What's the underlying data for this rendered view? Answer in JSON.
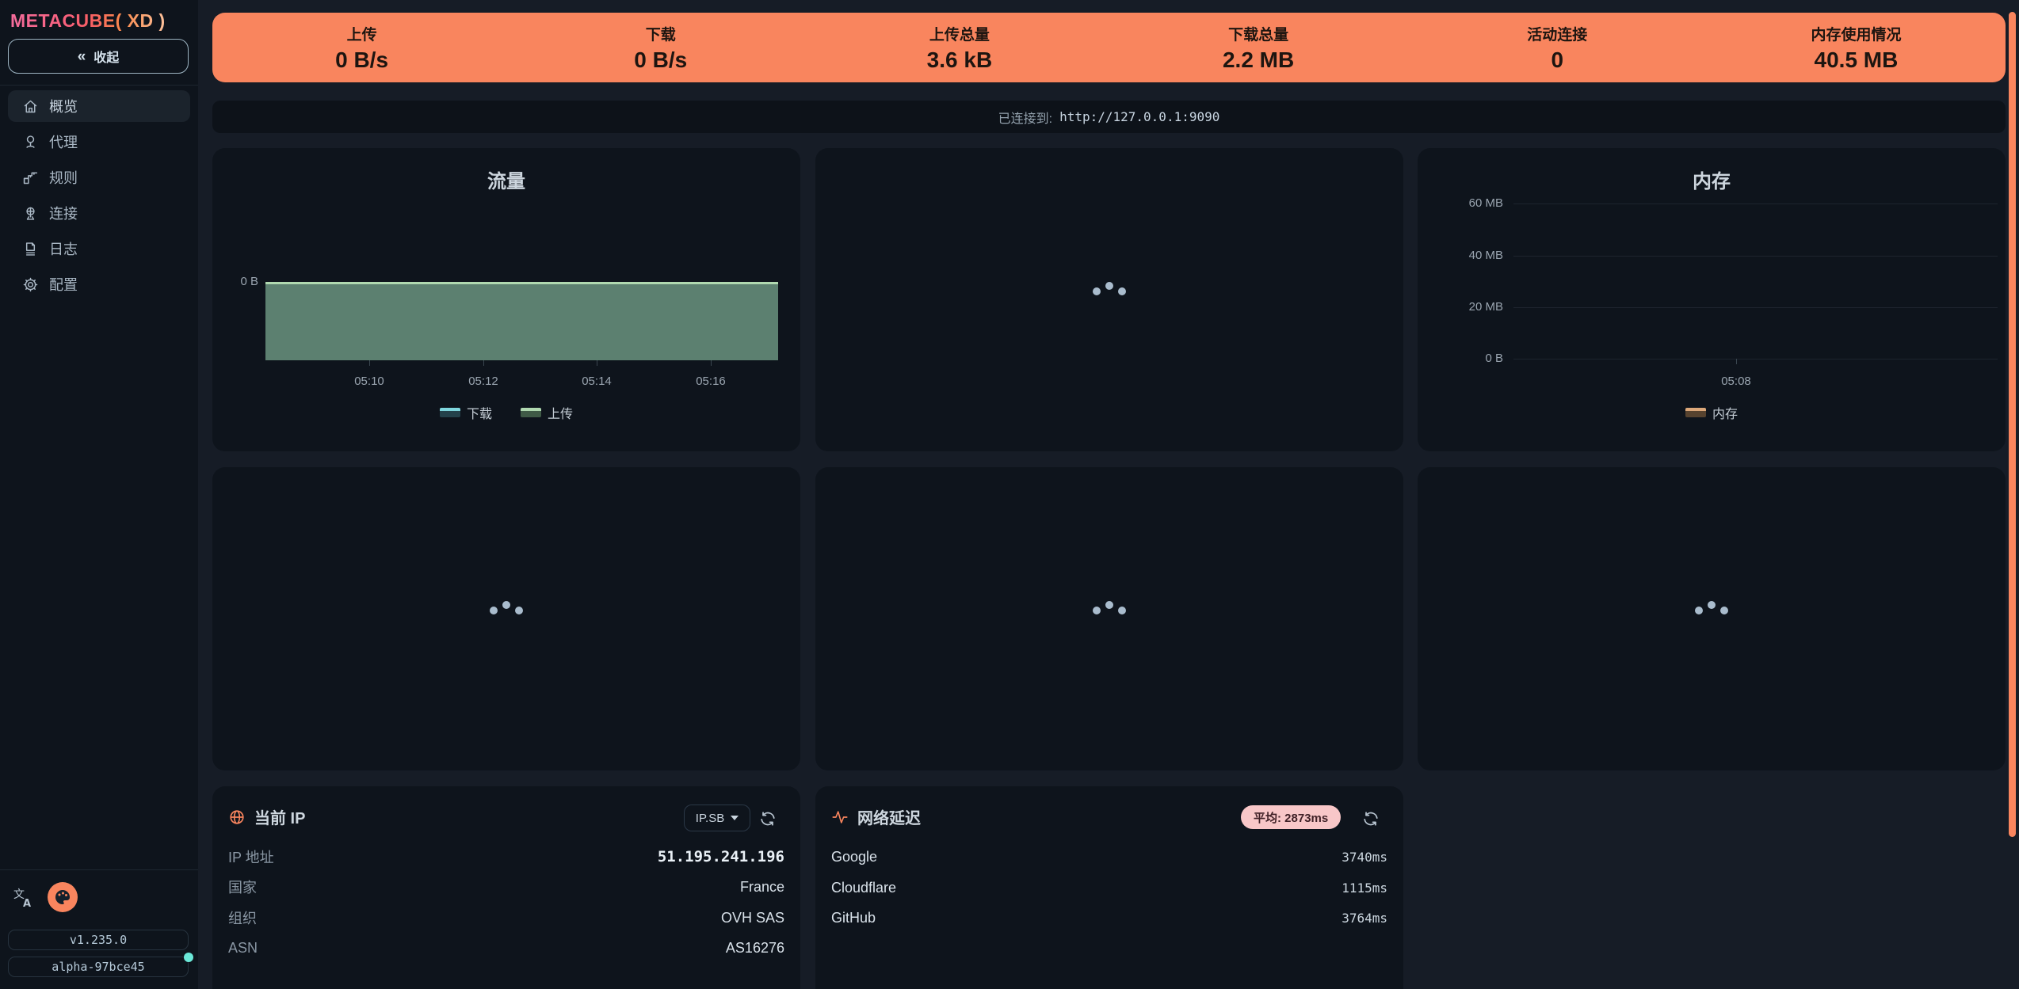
{
  "colors": {
    "accent_orange": "#f9855e",
    "pink": "#f8c7c8",
    "cyan_status_dot": "#6be8d8",
    "download_series": "#7fd7de",
    "upload_series": "#b0d9b0",
    "memory_series": "#dca87a"
  },
  "logo": {
    "part1": "METACUBE(",
    "part2": " XD ",
    "part3": ")"
  },
  "sidebar": {
    "collapse": {
      "icon": "«",
      "label": "收起"
    },
    "items": [
      {
        "label": "概览",
        "icon": "home-icon",
        "active": true
      },
      {
        "label": "代理",
        "icon": "proxy-icon",
        "active": false
      },
      {
        "label": "规则",
        "icon": "rules-icon",
        "active": false
      },
      {
        "label": "连接",
        "icon": "connections-icon",
        "active": false
      },
      {
        "label": "日志",
        "icon": "logs-icon",
        "active": false
      },
      {
        "label": "配置",
        "icon": "config-icon",
        "active": false
      }
    ],
    "version": "v1.235.0",
    "build": "alpha-97bce45"
  },
  "banner": {
    "stats": [
      {
        "label": "上传",
        "value": "0 B/s"
      },
      {
        "label": "下载",
        "value": "0 B/s"
      },
      {
        "label": "上传总量",
        "value": "3.6 kB"
      },
      {
        "label": "下载总量",
        "value": "2.2 MB"
      },
      {
        "label": "活动连接",
        "value": "0"
      },
      {
        "label": "内存使用情况",
        "value": "40.5 MB"
      }
    ]
  },
  "connection": {
    "prefix": "已连接到:",
    "url": "http://127.0.0.1:9090"
  },
  "chart_data": [
    {
      "type": "area",
      "title": "流量",
      "x_ticks": [
        "05:10",
        "05:12",
        "05:14",
        "05:16"
      ],
      "y_ticks": [
        "0 B"
      ],
      "x_range": [
        "05:08",
        "05:17"
      ],
      "ylim_note": "flat line pinned at 0 B, filled area below",
      "legend_position": "bottom",
      "grid": false,
      "series": [
        {
          "name": "下载",
          "color": "#7fd7de",
          "values": [
            0,
            0,
            0,
            0,
            0,
            0,
            0,
            0,
            0
          ]
        },
        {
          "name": "上传",
          "color": "#b0d9b0",
          "values": [
            0,
            0,
            0,
            0,
            0,
            0,
            0,
            0,
            0
          ]
        }
      ]
    },
    {
      "type": "line",
      "title": "内存",
      "y_ticks": [
        "60 MB",
        "40 MB",
        "20 MB",
        "0 B"
      ],
      "ylim": [
        0,
        60
      ],
      "x_ticks": [
        "05:08"
      ],
      "legend_position": "bottom",
      "grid": true,
      "series": [
        {
          "name": "内存",
          "color": "#dca87a",
          "values": []
        }
      ]
    }
  ],
  "ip_card": {
    "title": "当前 IP",
    "provider": "IP.SB",
    "rows": [
      {
        "label": "IP 地址",
        "value": "51.195.241.196"
      },
      {
        "label": "国家",
        "value": "France"
      },
      {
        "label": "组织",
        "value": "OVH SAS"
      },
      {
        "label": "ASN",
        "value": "AS16276"
      }
    ]
  },
  "latency_card": {
    "title": "网络延迟",
    "average": "平均: 2873ms",
    "rows": [
      {
        "label": "Google",
        "value": "3740ms",
        "pct": 100
      },
      {
        "label": "Cloudflare",
        "value": "1115ms",
        "pct": 100
      },
      {
        "label": "GitHub",
        "value": "3764ms",
        "pct": 100
      }
    ]
  }
}
